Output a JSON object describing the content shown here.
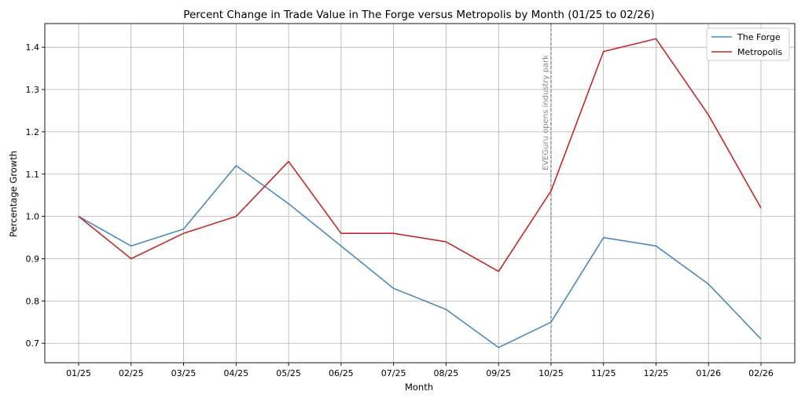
{
  "chart_data": {
    "type": "line",
    "title": "Percent Change in Trade Value in The Forge versus Metropolis by Month (01/25 to 02/26)",
    "xlabel": "Month",
    "ylabel": "Percentage Growth",
    "categories": [
      "01/25",
      "02/25",
      "03/25",
      "04/25",
      "05/25",
      "06/25",
      "07/25",
      "08/25",
      "09/25",
      "10/25",
      "11/25",
      "12/25",
      "01/26",
      "02/26"
    ],
    "series": [
      {
        "name": "The Forge",
        "color": "#4c8abf",
        "values": [
          1.0,
          0.93,
          0.97,
          1.12,
          1.03,
          0.93,
          0.83,
          0.78,
          0.69,
          0.75,
          0.95,
          0.93,
          0.84,
          0.71
        ]
      },
      {
        "name": "Metropolis",
        "color": "#c02a2a",
        "values": [
          1.0,
          0.9,
          0.96,
          1.0,
          1.13,
          0.96,
          0.96,
          0.94,
          0.87,
          1.06,
          1.39,
          1.42,
          1.24,
          1.02
        ]
      }
    ],
    "ylim": [
      0.654,
      1.456
    ],
    "yticks": [
      "0.7",
      "0.8",
      "0.9",
      "1.0",
      "1.1",
      "1.2",
      "1.3",
      "1.4"
    ],
    "grid": true,
    "legend_position": "top-right",
    "reference_line_y": 1.0,
    "annotation": {
      "category": "10/25",
      "text": "EVEGuru opens industry park",
      "color": "#888888"
    }
  }
}
